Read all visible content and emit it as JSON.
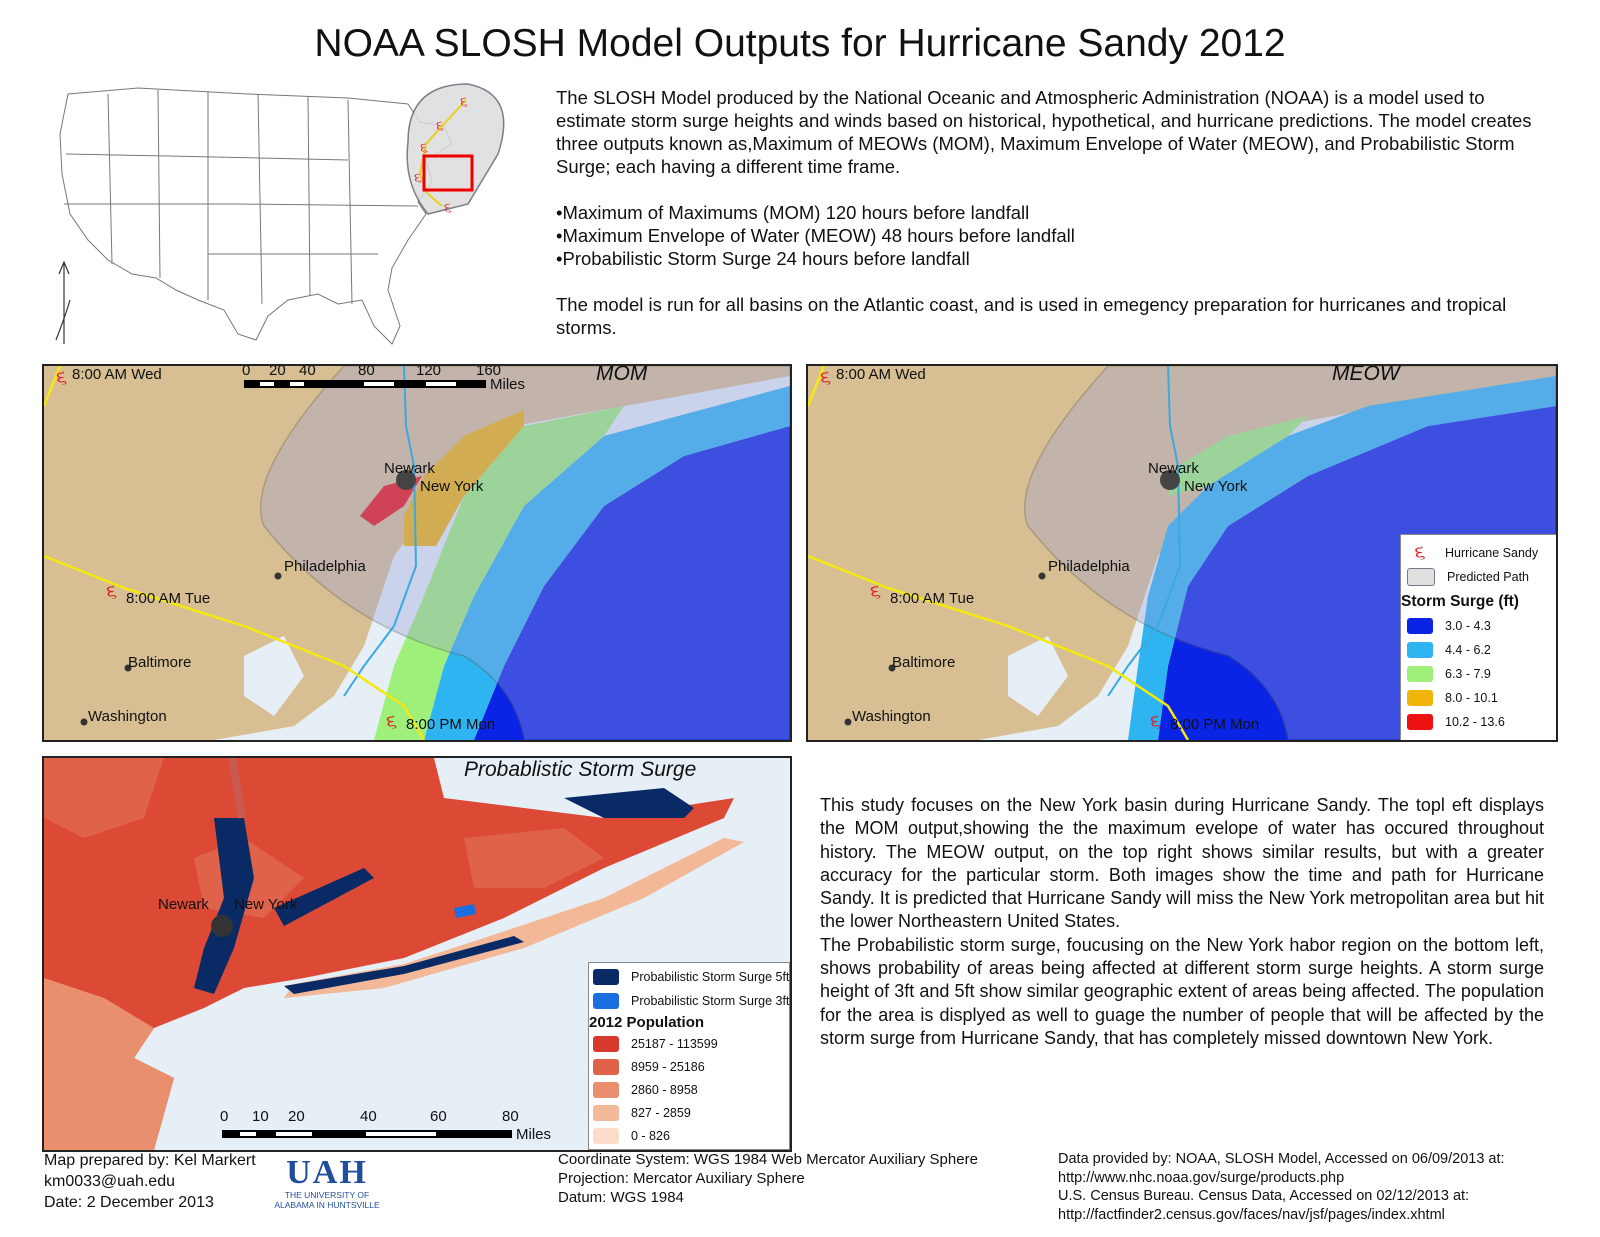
{
  "title": "NOAA SLOSH Model Outputs for Hurricane Sandy 2012",
  "intro": {
    "p1": "The SLOSH Model produced by the National Oceanic and Atmospheric Administration (NOAA) is a model used to estimate storm surge heights and  winds based on historical, hypothetical, and hurricane predictions. The model creates three outputs known as,Maximum of MEOWs (MOM), Maximum Envelope of Water (MEOW), and Probabilistic Storm Surge; each having a different time frame.",
    "bullets": [
      "•Maximum of Maximums (MOM) 120 hours before landfall",
      "•Maximum Envelope of Water (MEOW) 48 hours before landfall",
      "•Probabilistic Storm Surge 24 hours before landfall"
    ],
    "p2": "The model is run for all basins on the Atlantic coast, and is used in emegency preparation for hurricanes and tropical storms."
  },
  "maps": {
    "mom": {
      "title": "MOM",
      "scale_ticks": [
        "0",
        "20",
        "40",
        "80",
        "120",
        "160"
      ],
      "scale_unit": "Miles"
    },
    "meow": {
      "title": "MEOW"
    },
    "prob": {
      "title": "Probablistic Storm Surge",
      "scale_ticks": [
        "0",
        "10",
        "20",
        "40",
        "60",
        "80"
      ],
      "scale_unit": "Miles"
    },
    "track_labels": {
      "wed": "8:00 AM Wed",
      "tue": "8:00 AM Tue",
      "mon": "8:00 PM Mon"
    },
    "cities": {
      "newark": "Newark",
      "new_york": "New York",
      "philadelphia": "Philadelphia",
      "baltimore": "Baltimore",
      "washington": "Washington"
    }
  },
  "legend_surge": {
    "hurricane": "Hurricane Sandy",
    "path": "Predicted Path",
    "heading": "Storm Surge (ft)",
    "classes": [
      {
        "label": "3.0 - 4.3",
        "color": "#0a24e6"
      },
      {
        "label": "4.4 - 6.2",
        "color": "#2fb4f2"
      },
      {
        "label": "6.3 - 7.9",
        "color": "#9ef07a"
      },
      {
        "label": "8.0 - 10.1",
        "color": "#f0b40a"
      },
      {
        "label": "10.2 - 13.6",
        "color": "#ee1111"
      }
    ]
  },
  "legend_pop": {
    "surge5": "Probabilistic Storm Surge 5ft",
    "surge3": "Probabilistic Storm Surge 3ft",
    "surge5_color": "#0a2a66",
    "surge3_color": "#1a6fe0",
    "heading": "2012 Population",
    "classes": [
      {
        "label": "25187 - 113599",
        "color": "#d63a2c"
      },
      {
        "label": "8959 - 25186",
        "color": "#e0624a"
      },
      {
        "label": "2860 - 8958",
        "color": "#e98f6e"
      },
      {
        "label": "827 - 2859",
        "color": "#f2b898"
      },
      {
        "label": "0 - 826",
        "color": "#fadcc8"
      }
    ]
  },
  "study": {
    "p1": "This study focuses on the New York basin during Hurricane Sandy. The topl eft displays the MOM output,showing the the maximum evelope of water has occured throughout history. The MEOW output, on the top right shows similar results, but with a greater accuracy for the particular storm. Both images show the time and path for Hurricane Sandy. It is predicted that Hurricane Sandy will miss the New York metropolitan area but hit the lower Northeastern United States.",
    "p2": "The Probabilistic storm surge, foucusing on the New York habor region on the bottom left, shows probability of areas being affected at different storm surge heights. A storm surge height of 3ft  and 5ft  show similar geographic extent of areas being affected. The population for the area is displyed as well to guage the number of people that will be affected by the storm surge from Hurricane Sandy, that has completely missed downtown New York."
  },
  "footer": {
    "prepared": "Map prepared by: Kel Markert",
    "email": "km0033@uah.edu",
    "date": "Date: 2 December 2013",
    "logo_text": "UAH",
    "logo_line1": "THE UNIVERSITY OF",
    "logo_line2": "ALABAMA IN HUNTSVILLE",
    "coord": "Coordinate System: WGS 1984 Web Mercator Auxiliary Sphere",
    "proj": "Projection: Mercator Auxiliary Sphere",
    "datum": "Datum: WGS 1984",
    "src1": "Data provided by: NOAA, SLOSH Model, Accessed on 06/09/2013 at:",
    "src1_url": "http://www.nhc.noaa.gov/surge/products.php",
    "src2": "U.S. Census Bureau. Census Data, Accessed on 02/12/2013 at:",
    "src2_url": "http://factfinder2.census.gov/faces/nav/jsf/pages/index.xhtml"
  }
}
